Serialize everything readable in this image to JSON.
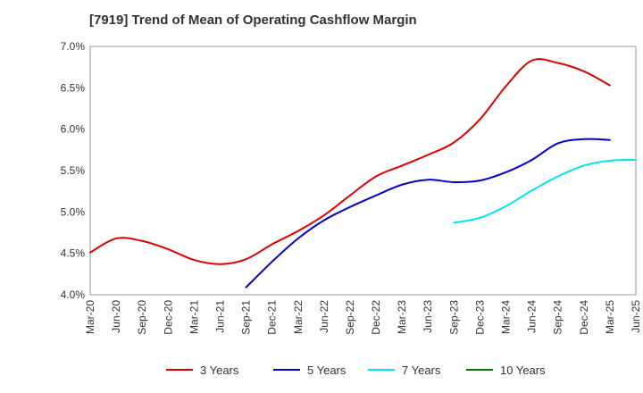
{
  "chart_data": {
    "type": "line",
    "title": "[7919]  Trend of Mean of Operating Cashflow Margin",
    "xlabel": "",
    "ylabel": "",
    "ylim": [
      4.0,
      7.0
    ],
    "y_ticks": [
      4.0,
      4.5,
      5.0,
      5.5,
      6.0,
      6.5,
      7.0
    ],
    "y_tick_labels": [
      "4.0%",
      "4.5%",
      "5.0%",
      "5.5%",
      "6.0%",
      "6.5%",
      "7.0%"
    ],
    "x_tick_labels": [
      "Mar-20",
      "Jun-20",
      "Sep-20",
      "Dec-20",
      "Mar-21",
      "Jun-21",
      "Sep-21",
      "Dec-21",
      "Mar-22",
      "Jun-22",
      "Sep-22",
      "Dec-22",
      "Mar-23",
      "Jun-23",
      "Sep-23",
      "Dec-23",
      "Mar-24",
      "Jun-24",
      "Sep-24",
      "Dec-24",
      "Mar-25",
      "Jun-25"
    ],
    "grid": true,
    "legend_position": "bottom",
    "series": [
      {
        "name": "3 Years",
        "color": "#dd0000",
        "start_index": 0,
        "values": [
          4.51,
          4.68,
          4.65,
          4.55,
          4.42,
          4.37,
          4.43,
          4.61,
          4.77,
          4.96,
          5.2,
          5.43,
          5.56,
          5.69,
          5.84,
          6.12,
          6.52,
          6.83,
          6.8,
          6.7,
          6.53
        ]
      },
      {
        "name": "5 Years",
        "color": "#0000cc",
        "start_index": 6,
        "values": [
          4.09,
          4.4,
          4.68,
          4.9,
          5.06,
          5.2,
          5.33,
          5.39,
          5.36,
          5.38,
          5.48,
          5.63,
          5.83,
          5.88,
          5.87
        ]
      },
      {
        "name": "7 Years",
        "color": "#00e5ee",
        "start_index": 14,
        "values": [
          4.87,
          4.93,
          5.07,
          5.26,
          5.43,
          5.56,
          5.62,
          5.63
        ]
      },
      {
        "name": "10 Years",
        "color": "#007700",
        "start_index": null,
        "values": []
      }
    ]
  }
}
